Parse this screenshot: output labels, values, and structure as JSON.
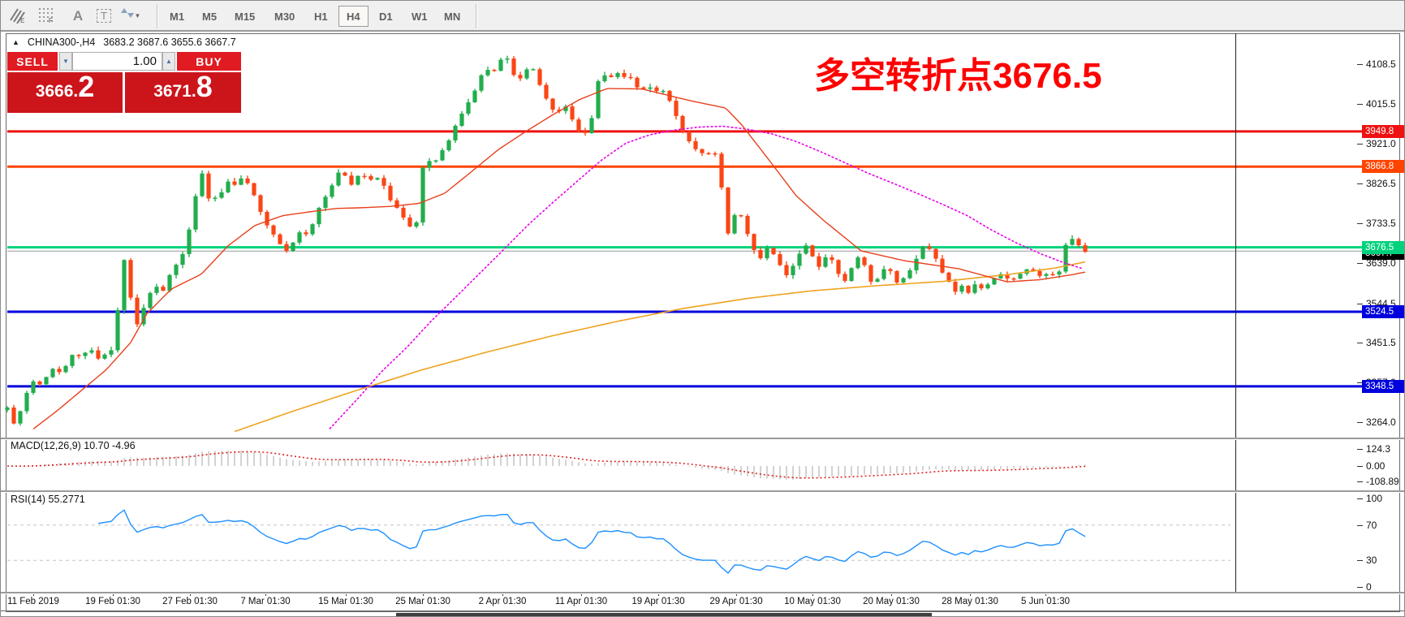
{
  "toolbar": {
    "tools": [
      {
        "name": "line-studies",
        "sub": "E"
      },
      {
        "name": "fibonacci-grid",
        "sub": "F"
      },
      {
        "name": "text-label",
        "glyph": "A"
      },
      {
        "name": "text-box",
        "glyph": "T"
      },
      {
        "name": "arrows",
        "glyph": "arrows"
      }
    ],
    "timeframes": [
      "M1",
      "M5",
      "M15",
      "M30",
      "H1",
      "H4",
      "D1",
      "W1",
      "MN"
    ],
    "active_timeframe": "H4"
  },
  "chart_header": {
    "collapse_icon": "▲",
    "symbol": "CHINA300-,H4",
    "ohlc": "3683.2 3687.6 3655.6 3667.7"
  },
  "trade_panel": {
    "sell_label": "SELL",
    "buy_label": "BUY",
    "volume": "1.00",
    "sell_price_main": "3666",
    "sell_price_frac": "2",
    "buy_price_main": "3671",
    "buy_price_frac": "8"
  },
  "annotation": {
    "text": "多空转折点3676.5",
    "color": "#ff0000"
  },
  "price_axis": {
    "ticks": [
      "4108.5",
      "4015.5",
      "3921.0",
      "3826.5",
      "3733.5",
      "3639.0",
      "3544.5",
      "3451.5",
      "3357.0",
      "3264.0"
    ]
  },
  "levels": [
    {
      "value": 3949.8,
      "label": "3949.8",
      "color": "#ee1111"
    },
    {
      "value": 3866.8,
      "label": "3866.8",
      "color": "#ff4400"
    },
    {
      "value": 3676.5,
      "label": "3676.5",
      "color": "#00d27c"
    },
    {
      "value": 3524.5,
      "label": "3524.5",
      "color": "#0000dd"
    },
    {
      "value": 3348.5,
      "label": "3348.5",
      "color": "#0000dd"
    }
  ],
  "current_price": {
    "value": 3667.7,
    "label": "3667.7",
    "line_color": "#9a9a9a",
    "box_color": "#000000"
  },
  "macd_panel": {
    "label": "MACD(12,26,9) 10.70 -4.96",
    "axis": [
      "124.3",
      "0.00",
      "-108.89"
    ]
  },
  "rsi_panel": {
    "label": "RSI(14) 55.2771",
    "axis": [
      "100",
      "70",
      "30",
      "0"
    ]
  },
  "time_axis": {
    "labels": [
      "11 Feb 2019",
      "19 Feb 01:30",
      "27 Feb 01:30",
      "7 Mar 01:30",
      "15 Mar 01:30",
      "25 Mar 01:30",
      "2 Apr 01:30",
      "11 Apr 01:30",
      "19 Apr 01:30",
      "29 Apr 01:30",
      "10 May 01:30",
      "20 May 01:30",
      "28 May 01:30",
      "5 Jun 01:30"
    ]
  },
  "chart_data": {
    "type": "candlestick",
    "symbol": "CHINA300-",
    "timeframe": "H4",
    "price_range_labels": [
      4108.5,
      3264.0
    ],
    "horizontal_levels": [
      3949.8,
      3866.8,
      3676.5,
      3524.5,
      3348.5
    ],
    "last_ohlc": {
      "open": 3683.2,
      "high": 3687.6,
      "low": 3655.6,
      "close": 3667.7
    },
    "colors": {
      "up_candle": "#23ad4e",
      "down_candle": "#fa4616",
      "ma_fast": "#e8401c",
      "ma_mid": "#e800e8",
      "ma_slow": "#eea320",
      "macd_hist": "#c8c8c8",
      "macd_signal": "#dd2222",
      "rsi_line": "#1e90ff"
    },
    "close_path_anchors": [
      [
        8,
        3300
      ],
      [
        16,
        3258
      ],
      [
        26,
        3300
      ],
      [
        36,
        3352
      ],
      [
        44,
        3368
      ],
      [
        52,
        3342
      ],
      [
        60,
        3398
      ],
      [
        70,
        3378
      ],
      [
        80,
        3398
      ],
      [
        90,
        3428
      ],
      [
        100,
        3418
      ],
      [
        110,
        3440
      ],
      [
        120,
        3414
      ],
      [
        130,
        3428
      ],
      [
        138,
        3436
      ],
      [
        146,
        3560
      ],
      [
        152,
        3648
      ],
      [
        158,
        3585
      ],
      [
        166,
        3480
      ],
      [
        174,
        3528
      ],
      [
        182,
        3560
      ],
      [
        190,
        3592
      ],
      [
        198,
        3562
      ],
      [
        206,
        3604
      ],
      [
        214,
        3635
      ],
      [
        222,
        3645
      ],
      [
        230,
        3700
      ],
      [
        238,
        3775
      ],
      [
        246,
        3858
      ],
      [
        252,
        3830
      ],
      [
        258,
        3772
      ],
      [
        266,
        3800
      ],
      [
        274,
        3812
      ],
      [
        282,
        3835
      ],
      [
        290,
        3818
      ],
      [
        298,
        3842
      ],
      [
        306,
        3825
      ],
      [
        314,
        3792
      ],
      [
        322,
        3752
      ],
      [
        330,
        3722
      ],
      [
        338,
        3700
      ],
      [
        346,
        3682
      ],
      [
        354,
        3665
      ],
      [
        362,
        3692
      ],
      [
        370,
        3722
      ],
      [
        378,
        3703
      ],
      [
        386,
        3742
      ],
      [
        394,
        3782
      ],
      [
        402,
        3802
      ],
      [
        410,
        3833
      ],
      [
        418,
        3862
      ],
      [
        426,
        3842
      ],
      [
        434,
        3822
      ],
      [
        442,
        3852
      ],
      [
        450,
        3842
      ],
      [
        458,
        3832
      ],
      [
        466,
        3846
      ],
      [
        474,
        3812
      ],
      [
        482,
        3782
      ],
      [
        490,
        3762
      ],
      [
        498,
        3742
      ],
      [
        506,
        3722
      ],
      [
        514,
        3742
      ],
      [
        518,
        3862
      ],
      [
        526,
        3880
      ],
      [
        534,
        3872
      ],
      [
        542,
        3900
      ],
      [
        550,
        3922
      ],
      [
        558,
        3952
      ],
      [
        566,
        3986
      ],
      [
        574,
        4012
      ],
      [
        582,
        4040
      ],
      [
        590,
        4075
      ],
      [
        598,
        4100
      ],
      [
        606,
        4085
      ],
      [
        614,
        4118
      ],
      [
        622,
        4130
      ],
      [
        630,
        4092
      ],
      [
        638,
        4068
      ],
      [
        646,
        4095
      ],
      [
        654,
        4105
      ],
      [
        662,
        4068
      ],
      [
        670,
        4038
      ],
      [
        678,
        4005
      ],
      [
        686,
        3992
      ],
      [
        694,
        4015
      ],
      [
        702,
        3985
      ],
      [
        710,
        3952
      ],
      [
        718,
        3938
      ],
      [
        726,
        3958
      ],
      [
        734,
        4062
      ],
      [
        742,
        4085
      ],
      [
        750,
        4072
      ],
      [
        758,
        4092
      ],
      [
        766,
        4078
      ],
      [
        774,
        4088
      ],
      [
        782,
        4052
      ],
      [
        790,
        4048
      ],
      [
        798,
        4058
      ],
      [
        806,
        4042
      ],
      [
        814,
        4052
      ],
      [
        822,
        4032
      ],
      [
        830,
        3995
      ],
      [
        838,
        3955
      ],
      [
        846,
        3935
      ],
      [
        854,
        3912
      ],
      [
        862,
        3900
      ],
      [
        870,
        3892
      ],
      [
        878,
        3912
      ],
      [
        886,
        3845
      ],
      [
        892,
        3760
      ],
      [
        898,
        3680
      ],
      [
        906,
        3778
      ],
      [
        914,
        3740
      ],
      [
        922,
        3700
      ],
      [
        930,
        3662
      ],
      [
        938,
        3645
      ],
      [
        946,
        3682
      ],
      [
        954,
        3655
      ],
      [
        962,
        3625
      ],
      [
        970,
        3605
      ],
      [
        978,
        3645
      ],
      [
        986,
        3665
      ],
      [
        994,
        3685
      ],
      [
        1002,
        3645
      ],
      [
        1010,
        3625
      ],
      [
        1018,
        3662
      ],
      [
        1026,
        3645
      ],
      [
        1034,
        3605
      ],
      [
        1042,
        3595
      ],
      [
        1050,
        3635
      ],
      [
        1058,
        3655
      ],
      [
        1066,
        3625
      ],
      [
        1074,
        3588
      ],
      [
        1082,
        3605
      ],
      [
        1090,
        3635
      ],
      [
        1098,
        3615
      ],
      [
        1106,
        3588
      ],
      [
        1114,
        3605
      ],
      [
        1122,
        3625
      ],
      [
        1130,
        3655
      ],
      [
        1138,
        3685
      ],
      [
        1146,
        3665
      ],
      [
        1154,
        3645
      ],
      [
        1162,
        3605
      ],
      [
        1170,
        3588
      ],
      [
        1178,
        3570
      ],
      [
        1186,
        3588
      ],
      [
        1194,
        3565
      ],
      [
        1202,
        3595
      ],
      [
        1210,
        3578
      ],
      [
        1218,
        3590
      ],
      [
        1226,
        3605
      ],
      [
        1234,
        3615
      ],
      [
        1242,
        3598
      ],
      [
        1250,
        3605
      ],
      [
        1258,
        3618
      ],
      [
        1266,
        3628
      ],
      [
        1274,
        3618
      ],
      [
        1282,
        3608
      ],
      [
        1290,
        3618
      ],
      [
        1296,
        3612
      ],
      [
        1302,
        3600
      ],
      [
        1310,
        3676
      ],
      [
        1318,
        3700
      ],
      [
        1326,
        3686
      ],
      [
        1336,
        3668
      ]
    ],
    "ma_fast_anchors": [
      [
        40,
        3248
      ],
      [
        70,
        3292
      ],
      [
        100,
        3340
      ],
      [
        130,
        3388
      ],
      [
        160,
        3452
      ],
      [
        180,
        3520
      ],
      [
        210,
        3578
      ],
      [
        247,
        3613
      ],
      [
        280,
        3680
      ],
      [
        313,
        3728
      ],
      [
        347,
        3751
      ],
      [
        380,
        3760
      ],
      [
        413,
        3768
      ],
      [
        447,
        3770
      ],
      [
        480,
        3773
      ],
      [
        515,
        3780
      ],
      [
        547,
        3804
      ],
      [
        580,
        3855
      ],
      [
        613,
        3907
      ],
      [
        647,
        3950
      ],
      [
        680,
        3989
      ],
      [
        713,
        4025
      ],
      [
        747,
        4051
      ],
      [
        790,
        4050
      ],
      [
        850,
        4022
      ],
      [
        893,
        4005
      ],
      [
        913,
        3965
      ],
      [
        947,
        3881
      ],
      [
        980,
        3798
      ],
      [
        1013,
        3741
      ],
      [
        1060,
        3668
      ],
      [
        1113,
        3645
      ],
      [
        1180,
        3626
      ],
      [
        1240,
        3595
      ],
      [
        1280,
        3600
      ],
      [
        1320,
        3612
      ],
      [
        1336,
        3618
      ]
    ],
    "ma_mid_anchors": [
      [
        405,
        3248
      ],
      [
        440,
        3320
      ],
      [
        470,
        3385
      ],
      [
        500,
        3440
      ],
      [
        530,
        3502
      ],
      [
        560,
        3558
      ],
      [
        590,
        3615
      ],
      [
        620,
        3672
      ],
      [
        650,
        3730
      ],
      [
        680,
        3782
      ],
      [
        710,
        3832
      ],
      [
        740,
        3882
      ],
      [
        770,
        3922
      ],
      [
        800,
        3942
      ],
      [
        830,
        3953
      ],
      [
        860,
        3960
      ],
      [
        890,
        3962
      ],
      [
        920,
        3955
      ],
      [
        950,
        3944
      ],
      [
        980,
        3926
      ],
      [
        1010,
        3902
      ],
      [
        1040,
        3876
      ],
      [
        1070,
        3850
      ],
      [
        1100,
        3827
      ],
      [
        1130,
        3803
      ],
      [
        1160,
        3778
      ],
      [
        1190,
        3752
      ],
      [
        1220,
        3718
      ],
      [
        1250,
        3688
      ],
      [
        1280,
        3662
      ],
      [
        1310,
        3640
      ],
      [
        1336,
        3624
      ]
    ],
    "ma_slow_anchors": [
      [
        288,
        3242
      ],
      [
        360,
        3290
      ],
      [
        440,
        3340
      ],
      [
        520,
        3388
      ],
      [
        600,
        3430
      ],
      [
        680,
        3468
      ],
      [
        760,
        3502
      ],
      [
        840,
        3532
      ],
      [
        920,
        3556
      ],
      [
        1000,
        3574
      ],
      [
        1080,
        3586
      ],
      [
        1160,
        3596
      ],
      [
        1240,
        3612
      ],
      [
        1300,
        3628
      ],
      [
        1336,
        3642
      ]
    ]
  }
}
